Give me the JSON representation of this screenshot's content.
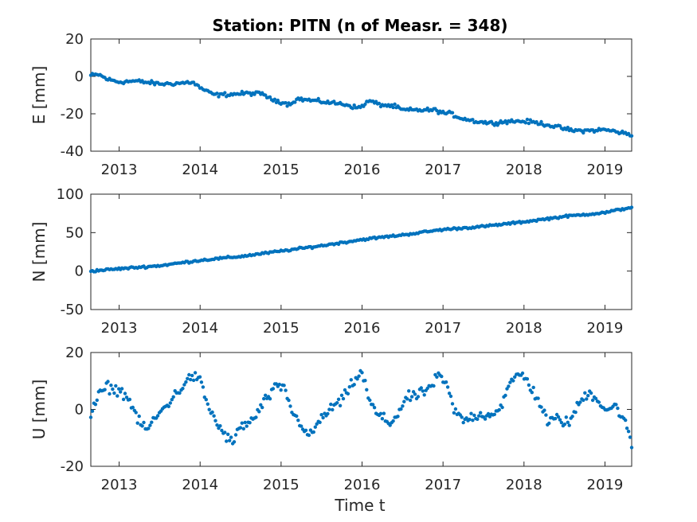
{
  "chart_data": {
    "type": "scatter",
    "title": "Station: PITN (n of Measr. = 348)",
    "xlabel": "Time t",
    "xlim": [
      2012.65,
      2019.33
    ],
    "x_ticks": [
      2013,
      2014,
      2015,
      2016,
      2017,
      2018,
      2019
    ],
    "grid": true,
    "marker_color": "#0072BD",
    "panels": [
      {
        "ylabel": "E [mm]",
        "ylim": [
          -40,
          20
        ],
        "y_ticks": [
          -40,
          -20,
          0,
          20
        ],
        "anchors": [
          [
            2012.65,
            0.5
          ],
          [
            2012.75,
            1
          ],
          [
            2012.85,
            -1.5
          ],
          [
            2013.0,
            -3
          ],
          [
            2013.2,
            -2.5
          ],
          [
            2013.4,
            -3.5
          ],
          [
            2013.5,
            -4
          ],
          [
            2013.6,
            -4
          ],
          [
            2013.8,
            -3.5
          ],
          [
            2013.9,
            -3
          ],
          [
            2014.0,
            -6
          ],
          [
            2014.1,
            -8.5
          ],
          [
            2014.2,
            -10
          ],
          [
            2014.4,
            -9.5
          ],
          [
            2014.6,
            -9
          ],
          [
            2014.8,
            -9.5
          ],
          [
            2014.85,
            -12
          ],
          [
            2014.95,
            -13
          ],
          [
            2015.1,
            -15
          ],
          [
            2015.2,
            -12
          ],
          [
            2015.4,
            -13
          ],
          [
            2015.6,
            -14
          ],
          [
            2015.8,
            -15
          ],
          [
            2015.95,
            -17
          ],
          [
            2016.1,
            -13
          ],
          [
            2016.2,
            -15
          ],
          [
            2016.4,
            -16
          ],
          [
            2016.5,
            -18
          ],
          [
            2016.7,
            -18
          ],
          [
            2016.9,
            -18
          ],
          [
            2017.0,
            -19.5
          ],
          [
            2017.1,
            -20
          ],
          [
            2017.2,
            -22
          ],
          [
            2017.4,
            -24
          ],
          [
            2017.6,
            -25
          ],
          [
            2017.8,
            -24
          ],
          [
            2018.0,
            -24
          ],
          [
            2018.2,
            -25
          ],
          [
            2018.4,
            -27
          ],
          [
            2018.6,
            -29
          ],
          [
            2018.8,
            -29
          ],
          [
            2019.0,
            -28.5
          ],
          [
            2019.2,
            -30
          ],
          [
            2019.33,
            -31.5
          ]
        ],
        "noise": 0.9
      },
      {
        "ylabel": "N [mm]",
        "ylim": [
          -50,
          100
        ],
        "y_ticks": [
          -50,
          0,
          50,
          100
        ],
        "anchors": [
          [
            2012.65,
            0
          ],
          [
            2013.0,
            3
          ],
          [
            2013.5,
            7
          ],
          [
            2014.0,
            14
          ],
          [
            2014.5,
            19
          ],
          [
            2015.0,
            26
          ],
          [
            2015.5,
            33
          ],
          [
            2016.0,
            41
          ],
          [
            2016.5,
            47
          ],
          [
            2017.0,
            54
          ],
          [
            2017.5,
            58
          ],
          [
            2018.0,
            64
          ],
          [
            2018.5,
            71
          ],
          [
            2019.0,
            76
          ],
          [
            2019.33,
            83
          ]
        ],
        "noise": 1.2
      },
      {
        "ylabel": "U [mm]",
        "ylim": [
          -20,
          20
        ],
        "y_ticks": [
          -20,
          0,
          20
        ],
        "anchors": [
          [
            2012.65,
            -2
          ],
          [
            2012.75,
            5
          ],
          [
            2012.85,
            8
          ],
          [
            2012.95,
            7
          ],
          [
            2013.05,
            6
          ],
          [
            2013.15,
            2
          ],
          [
            2013.25,
            -5
          ],
          [
            2013.35,
            -7
          ],
          [
            2013.45,
            -3
          ],
          [
            2013.6,
            2
          ],
          [
            2013.75,
            7
          ],
          [
            2013.9,
            12
          ],
          [
            2014.0,
            10
          ],
          [
            2014.1,
            1
          ],
          [
            2014.25,
            -7
          ],
          [
            2014.4,
            -12
          ],
          [
            2014.5,
            -6
          ],
          [
            2014.65,
            -4
          ],
          [
            2014.8,
            3
          ],
          [
            2014.95,
            8
          ],
          [
            2015.05,
            7
          ],
          [
            2015.15,
            -2
          ],
          [
            2015.25,
            -5
          ],
          [
            2015.35,
            -10
          ],
          [
            2015.45,
            -5
          ],
          [
            2015.6,
            0
          ],
          [
            2015.75,
            3
          ],
          [
            2015.9,
            10
          ],
          [
            2016.0,
            13
          ],
          [
            2016.1,
            2
          ],
          [
            2016.2,
            -2
          ],
          [
            2016.35,
            -5
          ],
          [
            2016.45,
            -1
          ],
          [
            2016.55,
            4
          ],
          [
            2016.7,
            5
          ],
          [
            2016.85,
            8
          ],
          [
            2016.95,
            12
          ],
          [
            2017.05,
            8
          ],
          [
            2017.15,
            -1
          ],
          [
            2017.25,
            -4
          ],
          [
            2017.4,
            -2
          ],
          [
            2017.55,
            -2
          ],
          [
            2017.7,
            0
          ],
          [
            2017.8,
            7
          ],
          [
            2017.9,
            12
          ],
          [
            2018.0,
            12
          ],
          [
            2018.1,
            7
          ],
          [
            2018.2,
            2
          ],
          [
            2018.3,
            -5
          ],
          [
            2018.4,
            -3
          ],
          [
            2018.55,
            -5
          ],
          [
            2018.7,
            3
          ],
          [
            2018.8,
            6
          ],
          [
            2018.9,
            4
          ],
          [
            2019.0,
            0
          ],
          [
            2019.15,
            1
          ],
          [
            2019.25,
            -5
          ],
          [
            2019.33,
            -12
          ]
        ],
        "noise": 1.6
      }
    ],
    "n_points": 348
  }
}
